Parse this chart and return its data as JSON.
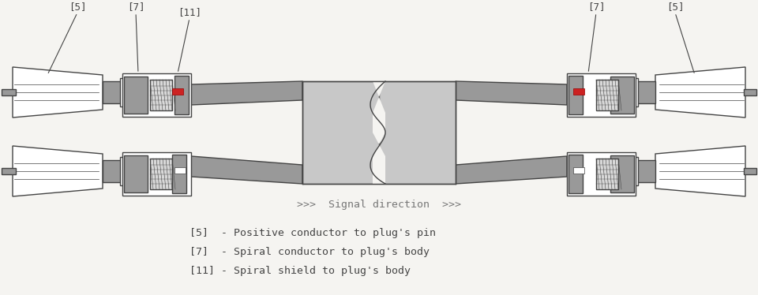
{
  "bg_color": "#f5f4f1",
  "line_color": "#444444",
  "gray_dark": "#777777",
  "gray_mid": "#999999",
  "gray_light": "#bbbbbb",
  "gray_lighter": "#d8d8d8",
  "gray_center": "#c8c8c8",
  "white": "#ffffff",
  "red": "#cc2222",
  "signal_text": ">>>  Signal direction  >>>",
  "legend": [
    "[5]  - Positive conductor to plug's pin",
    "[7]  - Spiral conductor to plug's body",
    "[11] - Spiral shield to plug's body"
  ],
  "label_5_left": "[5]",
  "label_7_left": "[7]",
  "label_11_left": "[11]",
  "label_5_right": "[5]",
  "label_7_right": "[7]",
  "font_size_label": 9,
  "font_size_legend": 9.5,
  "font_size_signal": 9.5
}
